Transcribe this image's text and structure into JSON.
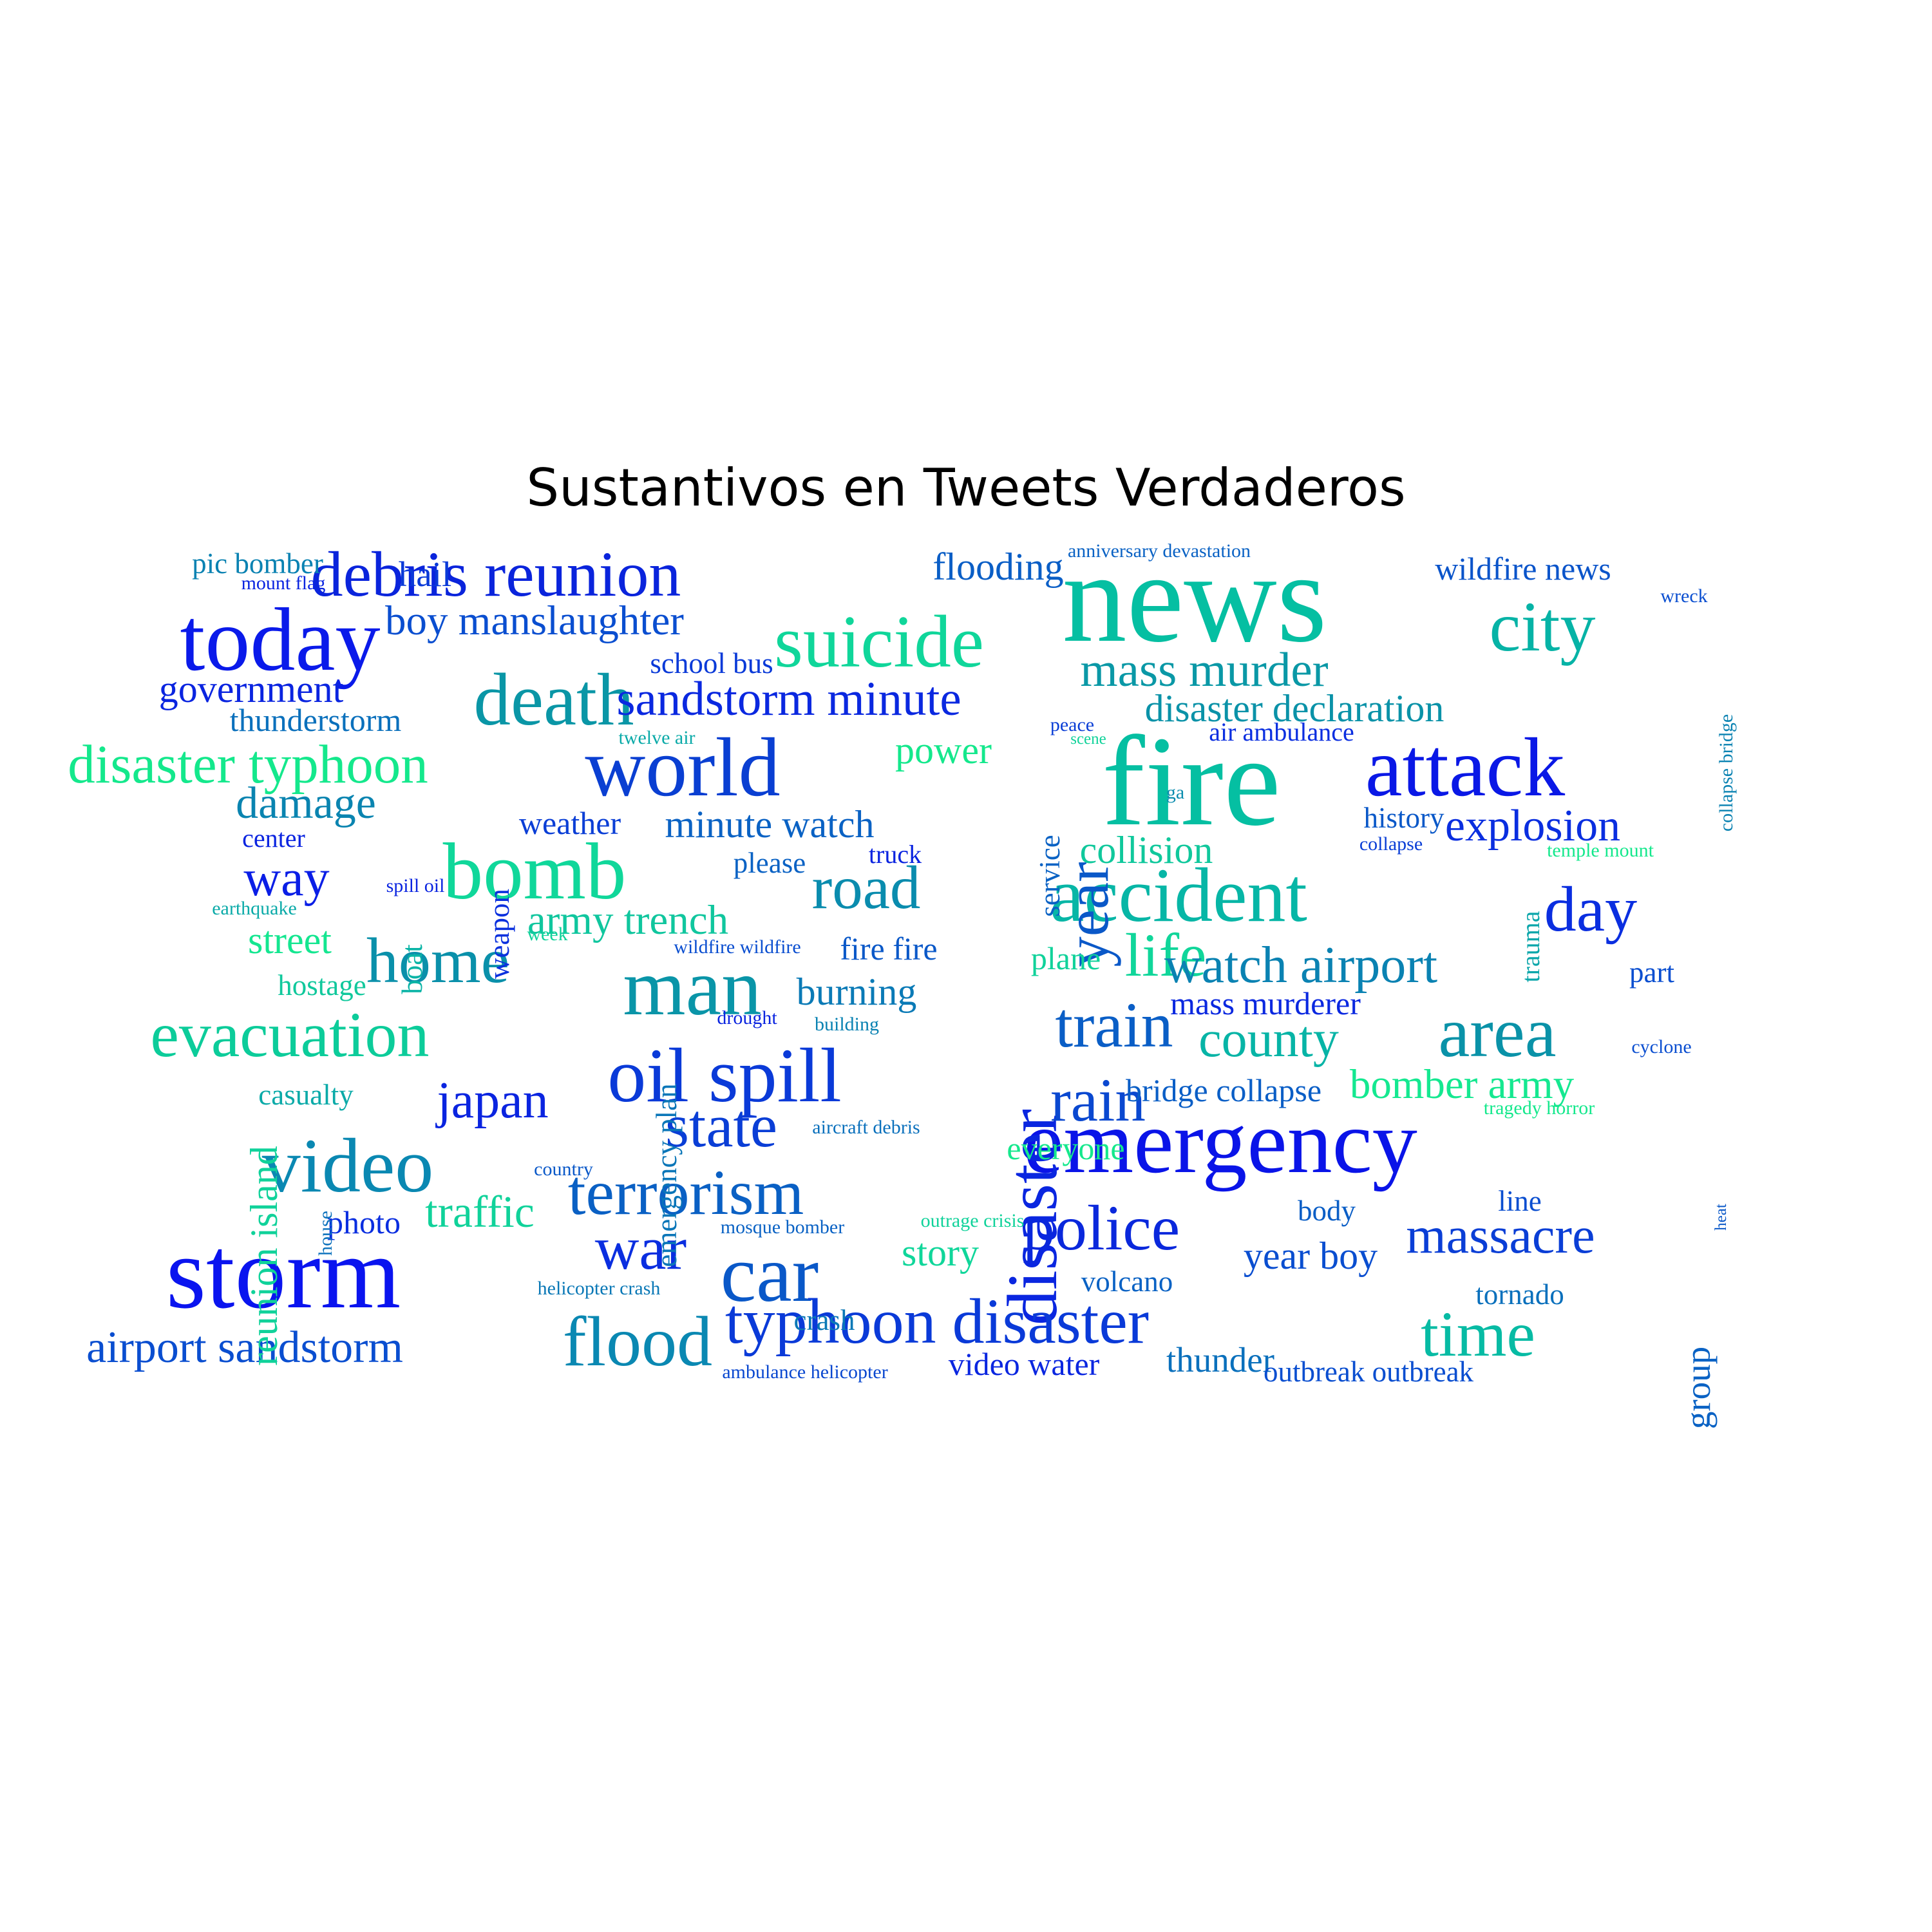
{
  "title": "Sustantivos en Tweets Verdaderos",
  "chart_data": {
    "type": "wordcloud",
    "title": "Sustantivos en Tweets Verdaderos",
    "words": [
      {
        "text": "news",
        "color": "#05bfa2"
      },
      {
        "text": "fire",
        "color": "#05bfa2"
      },
      {
        "text": "emergency",
        "color": "#0a14e8"
      },
      {
        "text": "storm",
        "color": "#0a14ef"
      },
      {
        "text": "today",
        "color": "#0a1aea"
      },
      {
        "text": "bomb",
        "color": "#10d79a"
      },
      {
        "text": "accident",
        "color": "#07b6a6"
      },
      {
        "text": "debris reunion",
        "color": "#0a24dc"
      },
      {
        "text": "world",
        "color": "#0a3fd2"
      },
      {
        "text": "attack",
        "color": "#0a18e6"
      },
      {
        "text": "suicide",
        "color": "#10d69a"
      },
      {
        "text": "disaster",
        "color": "#0a26e0"
      },
      {
        "text": "man",
        "color": "#0a95a8"
      },
      {
        "text": "oil spill",
        "color": "#0a3ad8"
      },
      {
        "text": "death",
        "color": "#0a96a6"
      },
      {
        "text": "car",
        "color": "#0a58c8"
      },
      {
        "text": "video",
        "color": "#0a88b2"
      },
      {
        "text": "typhoon disaster",
        "color": "#0a3ad8"
      },
      {
        "text": "police",
        "color": "#0a28dc"
      },
      {
        "text": "home",
        "color": "#0a90aa"
      },
      {
        "text": "evacuation",
        "color": "#0ccc9a"
      },
      {
        "text": "city",
        "color": "#06b3a6"
      },
      {
        "text": "time",
        "color": "#07bba4"
      },
      {
        "text": "flood",
        "color": "#0a88b2"
      },
      {
        "text": "area",
        "color": "#0a92a8"
      },
      {
        "text": "terrorism",
        "color": "#0a60c4"
      },
      {
        "text": "disaster typhoon",
        "color": "#14e88c"
      },
      {
        "text": "life",
        "color": "#10d69a"
      },
      {
        "text": "year",
        "color": "#0a58c8"
      },
      {
        "text": "war",
        "color": "#0a2ee0"
      },
      {
        "text": "train",
        "color": "#0a5ec6"
      },
      {
        "text": "state",
        "color": "#0a3ed6"
      },
      {
        "text": "mass murder",
        "color": "#0a98a6"
      },
      {
        "text": "day",
        "color": "#0a2ee0"
      },
      {
        "text": "rain",
        "color": "#0a48d0"
      },
      {
        "text": "watch airport",
        "color": "#0a82b2"
      },
      {
        "text": "road",
        "color": "#0a8cae"
      },
      {
        "text": "sandstorm minute",
        "color": "#0a28e0"
      },
      {
        "text": "massacre",
        "color": "#0a3ed6"
      },
      {
        "text": "japan",
        "color": "#0a24e0"
      },
      {
        "text": "county",
        "color": "#07b4a6"
      },
      {
        "text": "boy manslaughter",
        "color": "#0a4ed0"
      },
      {
        "text": "airport sandstorm",
        "color": "#0a4ed0"
      },
      {
        "text": "explosion",
        "color": "#0a2ee0"
      },
      {
        "text": "way",
        "color": "#0a1ee6"
      },
      {
        "text": "disaster declaration",
        "color": "#0a92a8"
      },
      {
        "text": "minute watch",
        "color": "#0a62c4"
      },
      {
        "text": "damage",
        "color": "#0a84b0"
      },
      {
        "text": "army trench",
        "color": "#10c69e"
      },
      {
        "text": "bomber army",
        "color": "#14e890"
      },
      {
        "text": "government",
        "color": "#0a24e0"
      },
      {
        "text": "traffic",
        "color": "#10d29a"
      },
      {
        "text": "collision",
        "color": "#10c89c"
      },
      {
        "text": "burning",
        "color": "#0a7ab6"
      },
      {
        "text": "year boy",
        "color": "#0a4ed0"
      },
      {
        "text": "reunion island",
        "color": "#10d29a"
      },
      {
        "text": "power",
        "color": "#14e88c"
      },
      {
        "text": "street",
        "color": "#14e690"
      },
      {
        "text": "thunderstorm",
        "color": "#0a70bc"
      },
      {
        "text": "flooding",
        "color": "#0a5ec6"
      },
      {
        "text": "wildfire news",
        "color": "#0a54ca"
      },
      {
        "text": "bridge collapse",
        "color": "#0a5ec6"
      },
      {
        "text": "story",
        "color": "#10d69a"
      },
      {
        "text": "thunder",
        "color": "#0a70bc"
      },
      {
        "text": "mass murderer",
        "color": "#0a28e0"
      },
      {
        "text": "pic bomber",
        "color": "#0a82b2"
      },
      {
        "text": "video water",
        "color": "#0a26e0"
      },
      {
        "text": "emergency plan",
        "color": "#0a76b8"
      },
      {
        "text": "outbreak outbreak",
        "color": "#0a4ed0"
      },
      {
        "text": "weapon",
        "color": "#0a30de"
      },
      {
        "text": "school bus",
        "color": "#0a3ad8"
      },
      {
        "text": "hail",
        "color": "#0a3ad8"
      },
      {
        "text": "weather",
        "color": "#0a3ed6"
      },
      {
        "text": "hostage",
        "color": "#10c89c"
      },
      {
        "text": "casualty",
        "color": "#0aaaa8"
      },
      {
        "text": "everyone",
        "color": "#14e88c"
      },
      {
        "text": "fire fire",
        "color": "#0a58c8"
      },
      {
        "text": "photo",
        "color": "#0a2ee0"
      },
      {
        "text": "plane",
        "color": "#10d29a"
      },
      {
        "text": "group",
        "color": "#0a62c4"
      },
      {
        "text": "service",
        "color": "#0a62c4"
      },
      {
        "text": "volcano",
        "color": "#0a62c4"
      },
      {
        "text": "please",
        "color": "#0a62c4"
      },
      {
        "text": "history",
        "color": "#0a58c8"
      },
      {
        "text": "air ambulance",
        "color": "#0a2ee0"
      },
      {
        "text": "crash",
        "color": "#0a78b6"
      },
      {
        "text": "tornado",
        "color": "#0a70bc"
      },
      {
        "text": "line",
        "color": "#0a4ed0"
      },
      {
        "text": "body",
        "color": "#0a5ec6"
      },
      {
        "text": "part",
        "color": "#0a4ed0"
      },
      {
        "text": "boat",
        "color": "#0ab4a6"
      },
      {
        "text": "trauma",
        "color": "#0aa6aa"
      },
      {
        "text": "truck",
        "color": "#0a24e0"
      },
      {
        "text": "center",
        "color": "#0a24e0"
      },
      {
        "text": "anniversary devastation",
        "color": "#0a62c4"
      },
      {
        "text": "wreck",
        "color": "#0a4ed0"
      },
      {
        "text": "collapse bridge",
        "color": "#0a82b2"
      },
      {
        "text": "helicopter crash",
        "color": "#0a78b6"
      },
      {
        "text": "ambulance helicopter",
        "color": "#0a48d0"
      },
      {
        "text": "mosque bomber",
        "color": "#0a62c4"
      },
      {
        "text": "outrage crisis",
        "color": "#10d29a"
      },
      {
        "text": "aircraft debris",
        "color": "#0a70bc"
      },
      {
        "text": "country",
        "color": "#0a58c8"
      },
      {
        "text": "house",
        "color": "#0a70bc"
      },
      {
        "text": "heat",
        "color": "#0a58c8"
      },
      {
        "text": "cyclone",
        "color": "#0a4ed0"
      },
      {
        "text": "tragedy horror",
        "color": "#14e88c"
      },
      {
        "text": "temple mount",
        "color": "#14e88c"
      },
      {
        "text": "collapse",
        "color": "#0a3ed6"
      },
      {
        "text": "peace",
        "color": "#0a3ed6"
      },
      {
        "text": "scene",
        "color": "#10d29a"
      },
      {
        "text": "ga",
        "color": "#0a8cae"
      },
      {
        "text": "twelve air",
        "color": "#0aaaa8"
      },
      {
        "text": "mount flag",
        "color": "#0a24e0"
      },
      {
        "text": "spill oil",
        "color": "#0a24e0"
      },
      {
        "text": "earthquake",
        "color": "#0aaaa8"
      },
      {
        "text": "week",
        "color": "#10d29a"
      },
      {
        "text": "wildfire wildfire",
        "color": "#0a4ed0"
      },
      {
        "text": "drought",
        "color": "#0a24e0"
      },
      {
        "text": "building",
        "color": "#0a82b2"
      }
    ]
  }
}
